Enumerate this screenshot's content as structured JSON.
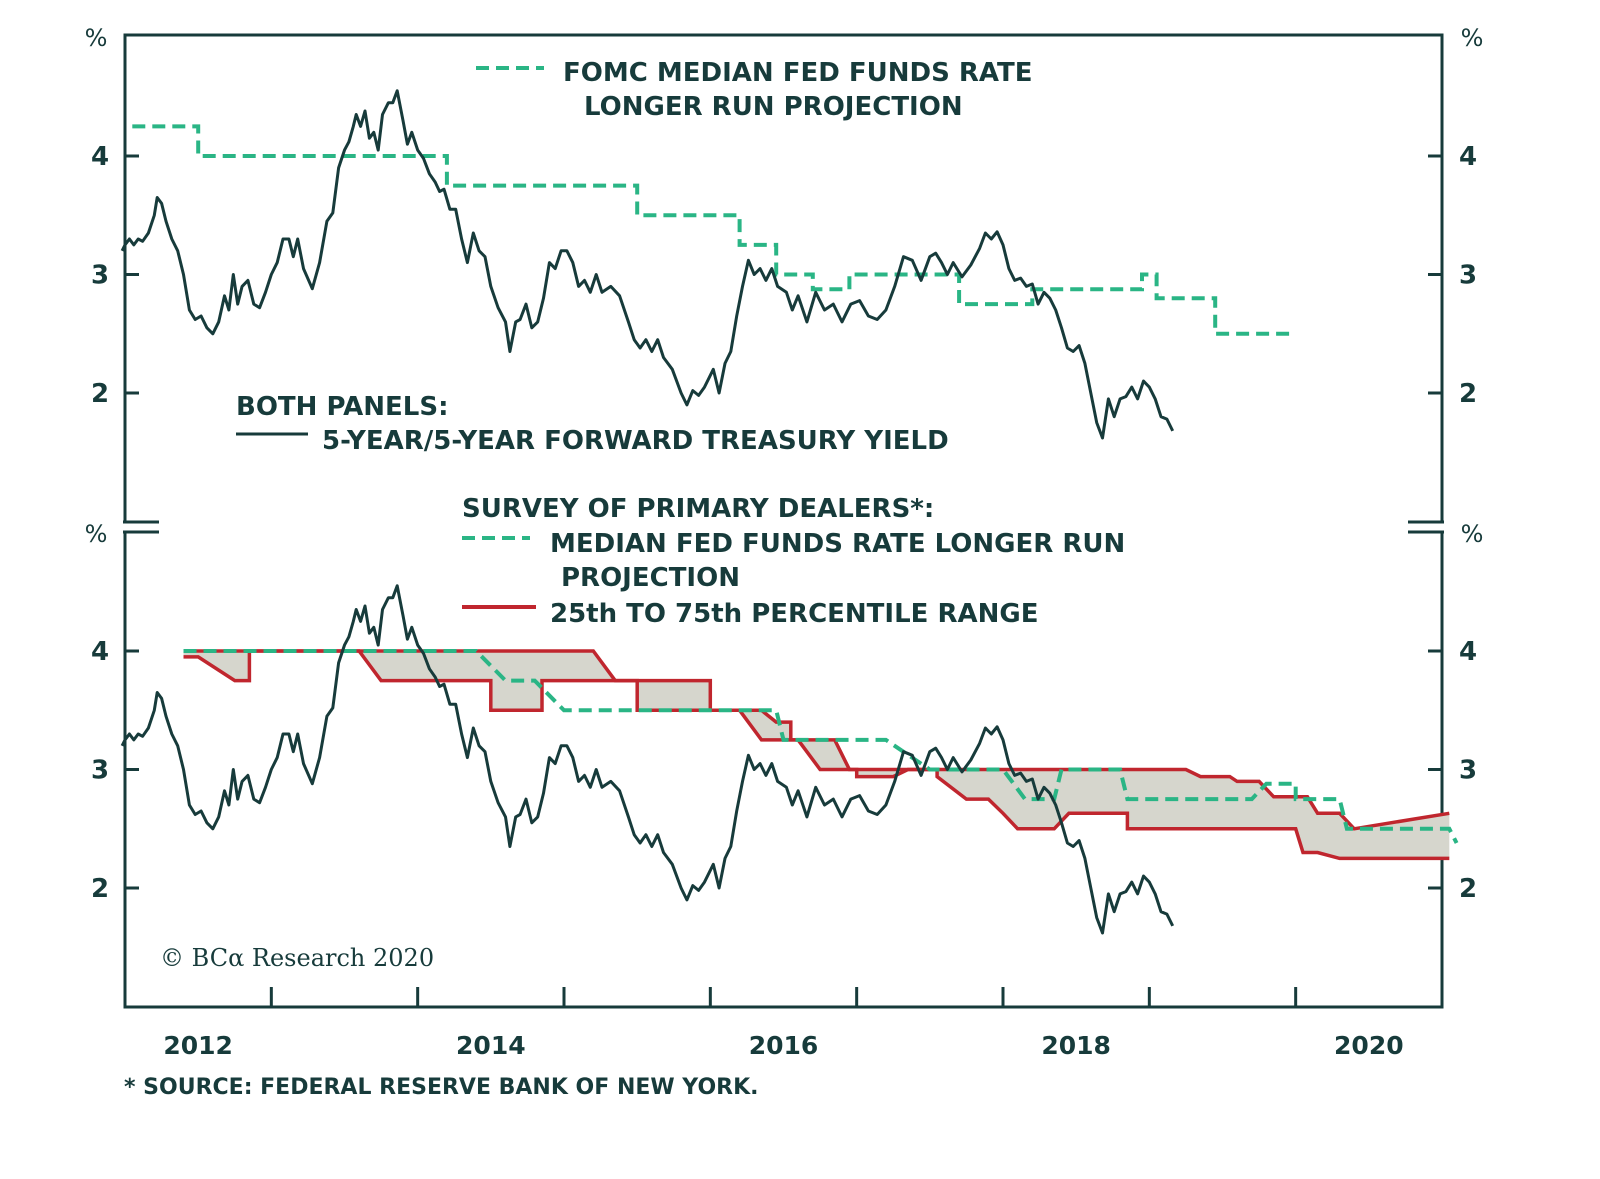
{
  "chart_data": [
    {
      "panel": "top",
      "type": "line",
      "ylabel_left": "%",
      "ylabel_right": "%",
      "ylim": [
        1.07,
        5.02
      ],
      "yticks": [
        "4",
        "3",
        "2"
      ],
      "ytick_values": [
        4,
        3,
        2
      ],
      "grid": false,
      "legend": {
        "placement": "top-center",
        "entries": [
          {
            "name": "FOMC MEDIAN FED FUNDS RATE",
            "name_line2": "LONGER RUN PROJECTION",
            "style": "dashed",
            "color": "#2ab585"
          },
          {
            "header": "BOTH PANELS:",
            "name": "5-YEAR/5-YEAR FORWARD TREASURY YIELD",
            "style": "solid",
            "color": "#173b3b"
          }
        ]
      },
      "series": [
        {
          "name": "FOMC MEDIAN FED FUNDS RATE LONGER RUN PROJECTION",
          "style": "step-dashed",
          "color": "#2ab585",
          "points": [
            [
              2012.05,
              4.25
            ],
            [
              2012.5,
              4.25
            ],
            [
              2012.5,
              4.0
            ],
            [
              2014.2,
              4.0
            ],
            [
              2014.2,
              3.75
            ],
            [
              2015.5,
              3.75
            ],
            [
              2015.5,
              3.5
            ],
            [
              2016.2,
              3.5
            ],
            [
              2016.2,
              3.25
            ],
            [
              2016.45,
              3.25
            ],
            [
              2016.45,
              3.0
            ],
            [
              2016.7,
              3.0
            ],
            [
              2016.7,
              2.875
            ],
            [
              2016.95,
              2.875
            ],
            [
              2016.95,
              3.0
            ],
            [
              2017.7,
              3.0
            ],
            [
              2017.7,
              2.75
            ],
            [
              2018.2,
              2.75
            ],
            [
              2018.2,
              2.875
            ],
            [
              2018.95,
              2.875
            ],
            [
              2018.95,
              3.0
            ],
            [
              2019.05,
              3.0
            ],
            [
              2019.05,
              2.8
            ],
            [
              2019.45,
              2.8
            ],
            [
              2019.45,
              2.5
            ],
            [
              2020.0,
              2.5
            ]
          ]
        },
        {
          "name": "5-YEAR/5-YEAR FORWARD TREASURY YIELD",
          "style": "solid",
          "color": "#173b3b",
          "ref": "yield"
        }
      ]
    },
    {
      "panel": "bottom",
      "type": "area",
      "ylabel_left": "%",
      "ylabel_right": "%",
      "ylim": [
        0.98,
        4.95
      ],
      "yticks": [
        "4",
        "3",
        "2"
      ],
      "ytick_values": [
        4,
        3,
        2
      ],
      "grid": false,
      "legend": {
        "placement": "top-center",
        "header": "SURVEY OF PRIMARY DEALERS*:",
        "entries": [
          {
            "name": "MEDIAN FED FUNDS RATE LONGER RUN",
            "name_line2": "PROJECTION",
            "style": "dashed",
            "color": "#2ab585"
          },
          {
            "name": "25th TO 75th PERCENTILE RANGE",
            "style": "solid",
            "color": "#c0262e",
            "fill": "#d6d6cd"
          }
        ]
      },
      "series": [
        {
          "name": "75th percentile",
          "color": "#c0262e",
          "points": [
            [
              2012.4,
              4.0
            ],
            [
              2015.2,
              4.0
            ],
            [
              2015.35,
              3.75
            ],
            [
              2016.0,
              3.75
            ],
            [
              2016.0,
              3.5
            ],
            [
              2016.35,
              3.5
            ],
            [
              2016.45,
              3.4
            ],
            [
              2016.55,
              3.4
            ],
            [
              2016.55,
              3.25
            ],
            [
              2016.85,
              3.25
            ],
            [
              2016.95,
              3.0
            ],
            [
              2019.25,
              3.0
            ],
            [
              2019.35,
              2.94
            ],
            [
              2019.55,
              2.94
            ],
            [
              2019.6,
              2.9
            ],
            [
              2019.75,
              2.9
            ],
            [
              2019.85,
              2.77
            ],
            [
              2020.08,
              2.77
            ],
            [
              2020.15,
              2.63
            ],
            [
              2020.3,
              2.63
            ],
            [
              2020.4,
              2.5
            ],
            [
              2020.1,
              2.5
            ]
          ]
        },
        {
          "name": "25th percentile",
          "color": "#c0262e",
          "points": [
            [
              2012.4,
              3.95
            ],
            [
              2012.5,
              3.95
            ],
            [
              2012.75,
              3.75
            ],
            [
              2012.85,
              3.75
            ],
            [
              2012.85,
              4.0
            ],
            [
              2013.6,
              4.0
            ],
            [
              2013.75,
              3.75
            ],
            [
              2014.5,
              3.75
            ],
            [
              2014.5,
              3.5
            ],
            [
              2014.85,
              3.5
            ],
            [
              2014.85,
              3.75
            ],
            [
              2015.5,
              3.75
            ],
            [
              2015.5,
              3.5
            ],
            [
              2016.2,
              3.5
            ],
            [
              2016.35,
              3.25
            ],
            [
              2016.6,
              3.25
            ],
            [
              2016.75,
              3.0
            ],
            [
              2017.0,
              3.0
            ],
            [
              2017.0,
              2.94
            ],
            [
              2017.25,
              2.94
            ],
            [
              2017.35,
              3.0
            ],
            [
              2017.55,
              3.0
            ],
            [
              2017.55,
              2.94
            ],
            [
              2017.75,
              2.75
            ],
            [
              2017.9,
              2.75
            ],
            [
              2018.0,
              2.63
            ],
            [
              2018.1,
              2.5
            ],
            [
              2018.35,
              2.5
            ],
            [
              2018.45,
              2.63
            ],
            [
              2018.85,
              2.63
            ],
            [
              2018.85,
              2.5
            ],
            [
              2020.0,
              2.5
            ]
          ]
        },
        {
          "name": "MEDIAN FED FUNDS RATE LONGER RUN PROJECTION",
          "style": "step-dashed",
          "color": "#2ab585",
          "points": [
            [
              2012.4,
              4.0
            ],
            [
              2014.4,
              4.0
            ],
            [
              2014.6,
              3.75
            ],
            [
              2014.8,
              3.75
            ],
            [
              2015.0,
              3.5
            ],
            [
              2016.45,
              3.5
            ],
            [
              2016.5,
              3.25
            ],
            [
              2016.65,
              3.25
            ],
            [
              2016.7,
              3.25
            ],
            [
              2017.2,
              3.25
            ],
            [
              2017.5,
              3.0
            ],
            [
              2018.0,
              3.0
            ],
            [
              2018.15,
              2.75
            ],
            [
              2018.35,
              2.75
            ],
            [
              2018.4,
              3.0
            ],
            [
              2018.8,
              3.0
            ],
            [
              2018.85,
              2.75
            ],
            [
              2019.7,
              2.75
            ],
            [
              2019.8,
              2.88
            ],
            [
              2020.0,
              2.88
            ],
            [
              2020.0,
              2.75
            ],
            [
              2020.3,
              2.75
            ],
            [
              2020.35,
              2.5
            ],
            [
              2021.05,
              2.5
            ],
            [
              2021.1,
              2.38
            ]
          ]
        },
        {
          "name": "5-YEAR/5-YEAR FORWARD TREASURY YIELD",
          "style": "solid",
          "color": "#173b3b",
          "ref": "yield"
        }
      ]
    }
  ],
  "yield": [
    [
      2011.98,
      3.2
    ],
    [
      2012.0,
      3.25
    ],
    [
      2012.03,
      3.3
    ],
    [
      2012.06,
      3.25
    ],
    [
      2012.09,
      3.3
    ],
    [
      2012.12,
      3.28
    ],
    [
      2012.16,
      3.35
    ],
    [
      2012.2,
      3.5
    ],
    [
      2012.22,
      3.65
    ],
    [
      2012.25,
      3.6
    ],
    [
      2012.28,
      3.45
    ],
    [
      2012.32,
      3.3
    ],
    [
      2012.36,
      3.2
    ],
    [
      2012.4,
      3.0
    ],
    [
      2012.44,
      2.7
    ],
    [
      2012.48,
      2.62
    ],
    [
      2012.52,
      2.65
    ],
    [
      2012.56,
      2.55
    ],
    [
      2012.6,
      2.5
    ],
    [
      2012.64,
      2.6
    ],
    [
      2012.68,
      2.82
    ],
    [
      2012.71,
      2.7
    ],
    [
      2012.74,
      3.0
    ],
    [
      2012.77,
      2.75
    ],
    [
      2012.8,
      2.9
    ],
    [
      2012.84,
      2.95
    ],
    [
      2012.88,
      2.75
    ],
    [
      2012.92,
      2.72
    ],
    [
      2012.96,
      2.85
    ],
    [
      2013.0,
      3.0
    ],
    [
      2013.04,
      3.1
    ],
    [
      2013.08,
      3.3
    ],
    [
      2013.12,
      3.3
    ],
    [
      2013.15,
      3.15
    ],
    [
      2013.18,
      3.3
    ],
    [
      2013.22,
      3.05
    ],
    [
      2013.28,
      2.88
    ],
    [
      2013.33,
      3.1
    ],
    [
      2013.38,
      3.45
    ],
    [
      2013.42,
      3.52
    ],
    [
      2013.46,
      3.9
    ],
    [
      2013.5,
      4.05
    ],
    [
      2013.53,
      4.12
    ],
    [
      2013.56,
      4.25
    ],
    [
      2013.58,
      4.35
    ],
    [
      2013.61,
      4.25
    ],
    [
      2013.64,
      4.38
    ],
    [
      2013.67,
      4.15
    ],
    [
      2013.7,
      4.2
    ],
    [
      2013.73,
      4.05
    ],
    [
      2013.76,
      4.35
    ],
    [
      2013.8,
      4.45
    ],
    [
      2013.83,
      4.45
    ],
    [
      2013.86,
      4.55
    ],
    [
      2013.9,
      4.3
    ],
    [
      2013.93,
      4.1
    ],
    [
      2013.96,
      4.2
    ],
    [
      2014.0,
      4.05
    ],
    [
      2014.04,
      3.98
    ],
    [
      2014.08,
      3.85
    ],
    [
      2014.12,
      3.78
    ],
    [
      2014.15,
      3.7
    ],
    [
      2014.18,
      3.72
    ],
    [
      2014.22,
      3.55
    ],
    [
      2014.26,
      3.55
    ],
    [
      2014.3,
      3.3
    ],
    [
      2014.34,
      3.1
    ],
    [
      2014.38,
      3.35
    ],
    [
      2014.42,
      3.2
    ],
    [
      2014.46,
      3.15
    ],
    [
      2014.5,
      2.9
    ],
    [
      2014.55,
      2.72
    ],
    [
      2014.6,
      2.6
    ],
    [
      2014.63,
      2.35
    ],
    [
      2014.67,
      2.6
    ],
    [
      2014.7,
      2.62
    ],
    [
      2014.74,
      2.75
    ],
    [
      2014.78,
      2.55
    ],
    [
      2014.82,
      2.6
    ],
    [
      2014.86,
      2.8
    ],
    [
      2014.9,
      3.1
    ],
    [
      2014.94,
      3.05
    ],
    [
      2014.98,
      3.2
    ],
    [
      2015.02,
      3.2
    ],
    [
      2015.06,
      3.1
    ],
    [
      2015.1,
      2.9
    ],
    [
      2015.14,
      2.95
    ],
    [
      2015.18,
      2.85
    ],
    [
      2015.22,
      3.0
    ],
    [
      2015.26,
      2.85
    ],
    [
      2015.32,
      2.9
    ],
    [
      2015.38,
      2.82
    ],
    [
      2015.44,
      2.6
    ],
    [
      2015.48,
      2.45
    ],
    [
      2015.52,
      2.38
    ],
    [
      2015.56,
      2.45
    ],
    [
      2015.6,
      2.35
    ],
    [
      2015.64,
      2.45
    ],
    [
      2015.68,
      2.3
    ],
    [
      2015.74,
      2.2
    ],
    [
      2015.8,
      2.0
    ],
    [
      2015.84,
      1.9
    ],
    [
      2015.88,
      2.02
    ],
    [
      2015.92,
      1.98
    ],
    [
      2015.96,
      2.05
    ],
    [
      2016.02,
      2.2
    ],
    [
      2016.06,
      2.0
    ],
    [
      2016.1,
      2.25
    ],
    [
      2016.14,
      2.35
    ],
    [
      2016.18,
      2.65
    ],
    [
      2016.22,
      2.9
    ],
    [
      2016.26,
      3.12
    ],
    [
      2016.3,
      3.0
    ],
    [
      2016.34,
      3.05
    ],
    [
      2016.38,
      2.95
    ],
    [
      2016.42,
      3.05
    ],
    [
      2016.46,
      2.9
    ],
    [
      2016.52,
      2.85
    ],
    [
      2016.56,
      2.7
    ],
    [
      2016.6,
      2.82
    ],
    [
      2016.66,
      2.6
    ],
    [
      2016.72,
      2.85
    ],
    [
      2016.78,
      2.7
    ],
    [
      2016.84,
      2.75
    ],
    [
      2016.9,
      2.6
    ],
    [
      2016.96,
      2.75
    ],
    [
      2017.02,
      2.78
    ],
    [
      2017.08,
      2.65
    ],
    [
      2017.14,
      2.62
    ],
    [
      2017.2,
      2.7
    ],
    [
      2017.26,
      2.9
    ],
    [
      2017.32,
      3.15
    ],
    [
      2017.38,
      3.12
    ],
    [
      2017.44,
      2.95
    ],
    [
      2017.5,
      3.15
    ],
    [
      2017.54,
      3.18
    ],
    [
      2017.58,
      3.1
    ],
    [
      2017.62,
      3.0
    ],
    [
      2017.66,
      3.1
    ],
    [
      2017.72,
      2.98
    ],
    [
      2017.78,
      3.08
    ],
    [
      2017.84,
      3.22
    ],
    [
      2017.88,
      3.35
    ],
    [
      2017.92,
      3.3
    ],
    [
      2017.96,
      3.36
    ],
    [
      2018.0,
      3.25
    ],
    [
      2018.04,
      3.05
    ],
    [
      2018.08,
      2.95
    ],
    [
      2018.12,
      2.97
    ],
    [
      2018.16,
      2.9
    ],
    [
      2018.2,
      2.92
    ],
    [
      2018.24,
      2.75
    ],
    [
      2018.28,
      2.85
    ],
    [
      2018.32,
      2.8
    ],
    [
      2018.36,
      2.7
    ],
    [
      2018.4,
      2.55
    ],
    [
      2018.44,
      2.38
    ],
    [
      2018.48,
      2.35
    ],
    [
      2018.52,
      2.4
    ],
    [
      2018.56,
      2.25
    ],
    [
      2018.6,
      2.0
    ],
    [
      2018.64,
      1.75
    ],
    [
      2018.68,
      1.62
    ],
    [
      2018.72,
      1.95
    ],
    [
      2018.76,
      1.8
    ],
    [
      2018.8,
      1.95
    ],
    [
      2018.84,
      1.97
    ],
    [
      2018.88,
      2.05
    ],
    [
      2018.92,
      1.95
    ],
    [
      2018.96,
      2.1
    ],
    [
      2019.0,
      2.05
    ],
    [
      2019.04,
      1.95
    ],
    [
      2019.08,
      1.8
    ],
    [
      2019.12,
      1.78
    ],
    [
      2019.16,
      1.68
    ]
  ],
  "xaxis": {
    "tick_years": [
      2012,
      2013,
      2014,
      2015,
      2016,
      2017,
      2018,
      2019,
      2020
    ],
    "labels": [
      "2012",
      "2014",
      "2016",
      "2018",
      "2020"
    ],
    "label_years": [
      2012.5,
      2014.5,
      2016.5,
      2018.5,
      2020.5
    ],
    "range": [
      2012,
      2021
    ]
  },
  "text": {
    "legend_top_line1": "FOMC MEDIAN FED FUNDS RATE",
    "legend_top_line2": "LONGER RUN PROJECTION",
    "both_panels": "BOTH PANELS:",
    "yield_label": "5-YEAR/5-YEAR FORWARD TREASURY YIELD",
    "survey_header": "SURVEY OF PRIMARY DEALERS*:",
    "survey_median_line1": "MEDIAN FED FUNDS RATE LONGER RUN",
    "survey_median_line2": "PROJECTION",
    "survey_range": "25th TO 75th PERCENTILE RANGE",
    "copyright": "© BCα Research 2020",
    "source": "* SOURCE: FEDERAL RESERVE BANK OF NEW YORK.",
    "pct": "%"
  },
  "colors": {
    "ink": "#173b3b",
    "green": "#2ab585",
    "red": "#c0262e",
    "band": "#d6d6cd"
  }
}
